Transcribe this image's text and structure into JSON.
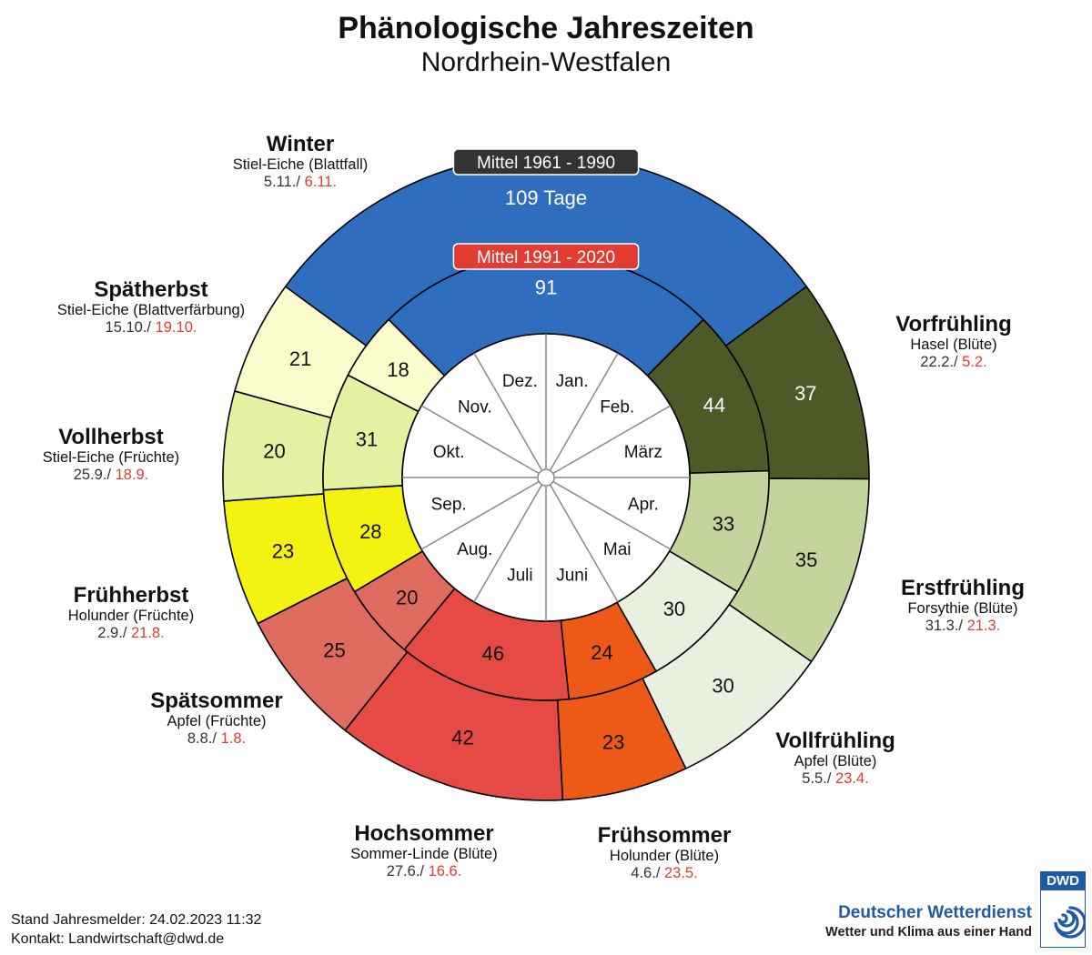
{
  "header": {
    "title": "Phänologische Jahreszeiten",
    "subtitle": "Nordrhein-Westfalen"
  },
  "chart_data": {
    "type": "radial-ring",
    "outer_ring_label": "Mittel 1961 - 1990",
    "inner_ring_label": "Mittel 1991 - 2020",
    "winter_outer_text": "109 Tage",
    "seasons": [
      {
        "id": "winter",
        "name": "Winter",
        "plant": "Stiel-Eiche (Blattfall)",
        "date1": "5.11./",
        "date2": "6.11.",
        "outer_days": 109,
        "inner_days": 91,
        "outer_value_label": "109 Tage",
        "inner_value_label": "91",
        "color": "#2f6ebf"
      },
      {
        "id": "vorfruehling",
        "name": "Vorfrühling",
        "plant": "Hasel (Blüte)",
        "date1": "22.2./",
        "date2": "5.2.",
        "outer_days": 37,
        "inner_days": 44,
        "outer_value_label": "37",
        "inner_value_label": "44",
        "color": "#4d5a28"
      },
      {
        "id": "erstfruehling",
        "name": "Erstfrühling",
        "plant": "Forsythie (Blüte)",
        "date1": "31.3./",
        "date2": "21.3.",
        "outer_days": 35,
        "inner_days": 33,
        "outer_value_label": "35",
        "inner_value_label": "33",
        "color": "#c3d59c"
      },
      {
        "id": "vollfruehling",
        "name": "Vollfrühling",
        "plant": "Apfel (Blüte)",
        "date1": "5.5./",
        "date2": "23.4.",
        "outer_days": 30,
        "inner_days": 30,
        "outer_value_label": "30",
        "inner_value_label": "30",
        "color": "#eaf0df"
      },
      {
        "id": "fruehsommer",
        "name": "Frühsommer",
        "plant": "Holunder (Blüte)",
        "date1": "4.6./",
        "date2": "23.5.",
        "outer_days": 23,
        "inner_days": 24,
        "outer_value_label": "23",
        "inner_value_label": "24",
        "color": "#ed5a17"
      },
      {
        "id": "hochsommer",
        "name": "Hochsommer",
        "plant": "Sommer-Linde (Blüte)",
        "date1": "27.6./",
        "date2": "16.6.",
        "outer_days": 42,
        "inner_days": 46,
        "outer_value_label": "42",
        "inner_value_label": "46",
        "color": "#e64a44"
      },
      {
        "id": "spaetsommer",
        "name": "Spätsommer",
        "plant": "Apfel (Früchte)",
        "date1": "8.8./",
        "date2": "1.8.",
        "outer_days": 25,
        "inner_days": 20,
        "outer_value_label": "25",
        "inner_value_label": "20",
        "color": "#df6a5e"
      },
      {
        "id": "fruehherbst",
        "name": "Frühherbst",
        "plant": "Holunder (Früchte)",
        "date1": "2.9./",
        "date2": "21.8.",
        "outer_days": 23,
        "inner_days": 28,
        "outer_value_label": "23",
        "inner_value_label": "28",
        "color": "#f4f211"
      },
      {
        "id": "vollherbst",
        "name": "Vollherbst",
        "plant": "Stiel-Eiche (Früchte)",
        "date1": "25.9./",
        "date2": "18.9.",
        "outer_days": 20,
        "inner_days": 31,
        "outer_value_label": "20",
        "inner_value_label": "31",
        "color": "#e4f0a2"
      },
      {
        "id": "spaetherbst",
        "name": "Spätherbst",
        "plant": "Stiel-Eiche (Blattverfärbung)",
        "date1": "15.10./",
        "date2": "19.10.",
        "outer_days": 21,
        "inner_days": 18,
        "outer_value_label": "21",
        "inner_value_label": "18",
        "color": "#fbfccc"
      }
    ],
    "months": [
      "Jan.",
      "Feb.",
      "März",
      "Apr.",
      "Mai",
      "Juni",
      "Juli",
      "Aug.",
      "Sep.",
      "Okt.",
      "Nov.",
      "Dez."
    ]
  },
  "footer": {
    "status": "Stand Jahresmelder: 24.02.2023 11:32",
    "contact": "Kontakt: Landwirtschaft@dwd.de"
  },
  "brand": {
    "logo_text": "DWD",
    "name": "Deutscher Wetterdienst",
    "claim": "Wetter und Klima aus einer Hand",
    "color": "#1f5aa6"
  },
  "colors": {
    "ring_label_outer_bg": "#333333",
    "ring_label_inner_bg": "#e03c31",
    "late_date": "#e03c31"
  }
}
